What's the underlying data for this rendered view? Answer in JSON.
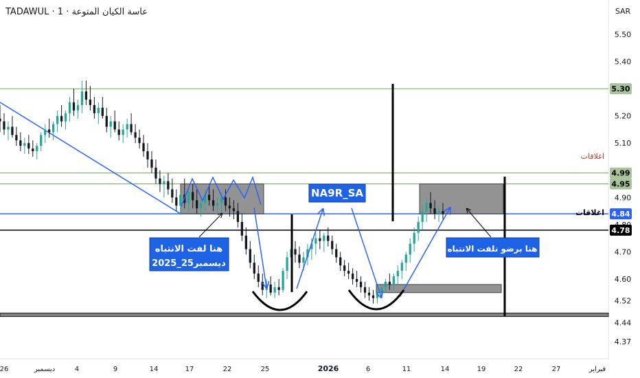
{
  "header": {
    "title": "TADAWUL · 1 · عاسة الكيان المتوعة"
  },
  "chart_data": {
    "type": "candlestick",
    "currency": "SAR",
    "ylim": [
      4.33,
      5.6
    ],
    "y_ticks": [
      "5.50",
      "5.40",
      "5.30",
      "5.20",
      "5.10",
      "4.90",
      "4.80",
      "4.70",
      "4.60",
      "4.52",
      "4.44",
      "4.37"
    ],
    "x_ticks": [
      "26",
      "ديسمبر",
      "4",
      "9",
      "14",
      "17",
      "22",
      "25",
      "2026",
      "6",
      "11",
      "14",
      "19",
      "22",
      "27",
      "فبراير"
    ],
    "price_labels": [
      {
        "value": 5.3,
        "text": "5.30",
        "color": "#a9c49a"
      },
      {
        "value": 4.99,
        "text": "4.99",
        "color": "#a9c49a"
      },
      {
        "value": 4.95,
        "text": "4.95",
        "color": "#a9c49a"
      },
      {
        "value": 4.84,
        "text": "4.84",
        "color": "#2962ff"
      },
      {
        "value": 4.78,
        "text": "4.78",
        "color": "#000000"
      }
    ],
    "line_labels": {
      "closes_upper": "اغلاقات",
      "closes_lower": "اغلاقات"
    },
    "annotations": {
      "symbol": "NA9R_SA",
      "left_box": [
        "هنا لفت الانتباه",
        "ديسمبر25_2025"
      ],
      "right_box": "هنا برضو نلفت الانتباه"
    },
    "colors": {
      "up": "#26a69a",
      "down": "#131722",
      "trend": "#2962ff",
      "resistance": "#6aa84f",
      "zone": "#808080"
    },
    "candles": [
      [
        5.19,
        5.24,
        5.14,
        5.18
      ],
      [
        5.18,
        5.21,
        5.13,
        5.15
      ],
      [
        5.15,
        5.18,
        5.11,
        5.16
      ],
      [
        5.16,
        5.2,
        5.12,
        5.13
      ],
      [
        5.13,
        5.16,
        5.09,
        5.11
      ],
      [
        5.11,
        5.14,
        5.07,
        5.09
      ],
      [
        5.09,
        5.12,
        5.06,
        5.1
      ],
      [
        5.1,
        5.13,
        5.06,
        5.08
      ],
      [
        5.08,
        5.11,
        5.05,
        5.07
      ],
      [
        5.07,
        5.1,
        5.04,
        5.09
      ],
      [
        5.09,
        5.14,
        5.07,
        5.13
      ],
      [
        5.13,
        5.17,
        5.1,
        5.15
      ],
      [
        5.15,
        5.19,
        5.12,
        5.14
      ],
      [
        5.14,
        5.18,
        5.11,
        5.17
      ],
      [
        5.17,
        5.22,
        5.14,
        5.2
      ],
      [
        5.2,
        5.24,
        5.16,
        5.18
      ],
      [
        5.18,
        5.22,
        5.15,
        5.21
      ],
      [
        5.21,
        5.27,
        5.18,
        5.25
      ],
      [
        5.25,
        5.3,
        5.2,
        5.22
      ],
      [
        5.22,
        5.26,
        5.19,
        5.24
      ],
      [
        5.24,
        5.33,
        5.21,
        5.29
      ],
      [
        5.29,
        5.33,
        5.24,
        5.26
      ],
      [
        5.26,
        5.31,
        5.22,
        5.24
      ],
      [
        5.24,
        5.27,
        5.19,
        5.21
      ],
      [
        5.21,
        5.25,
        5.17,
        5.23
      ],
      [
        5.23,
        5.27,
        5.19,
        5.2
      ],
      [
        5.2,
        5.23,
        5.14,
        5.16
      ],
      [
        5.16,
        5.2,
        5.12,
        5.18
      ],
      [
        5.18,
        5.22,
        5.14,
        5.15
      ],
      [
        5.15,
        5.18,
        5.11,
        5.13
      ],
      [
        5.13,
        5.17,
        5.1,
        5.15
      ],
      [
        5.15,
        5.19,
        5.12,
        5.17
      ],
      [
        5.17,
        5.21,
        5.13,
        5.14
      ],
      [
        5.14,
        5.17,
        5.1,
        5.12
      ],
      [
        5.12,
        5.15,
        5.08,
        5.1
      ],
      [
        5.1,
        5.13,
        5.05,
        5.07
      ],
      [
        5.07,
        5.1,
        5.01,
        5.04
      ],
      [
        5.04,
        5.07,
        4.99,
        5.01
      ],
      [
        5.01,
        5.04,
        4.95,
        4.97
      ],
      [
        4.97,
        5.0,
        4.92,
        4.95
      ],
      [
        4.95,
        4.98,
        4.9,
        4.96
      ],
      [
        4.96,
        4.99,
        4.91,
        4.93
      ],
      [
        4.93,
        4.97,
        4.88,
        4.9
      ],
      [
        4.9,
        4.93,
        4.85,
        4.87
      ],
      [
        4.87,
        4.92,
        4.84,
        4.91
      ],
      [
        4.91,
        4.97,
        4.86,
        4.88
      ],
      [
        4.88,
        4.94,
        4.85,
        4.92
      ],
      [
        4.92,
        4.95,
        4.86,
        4.89
      ],
      [
        4.89,
        4.93,
        4.84,
        4.86
      ],
      [
        4.86,
        4.9,
        4.83,
        4.88
      ],
      [
        4.88,
        4.93,
        4.85,
        4.91
      ],
      [
        4.91,
        4.95,
        4.87,
        4.89
      ],
      [
        4.89,
        4.93,
        4.85,
        4.87
      ],
      [
        4.87,
        4.9,
        4.84,
        4.88
      ],
      [
        4.88,
        4.92,
        4.84,
        4.9
      ],
      [
        4.9,
        4.93,
        4.85,
        4.87
      ],
      [
        4.87,
        4.9,
        4.83,
        4.86
      ],
      [
        4.86,
        4.89,
        4.82,
        4.85
      ],
      [
        4.85,
        4.88,
        4.79,
        4.81
      ],
      [
        4.81,
        4.84,
        4.74,
        4.76
      ],
      [
        4.76,
        4.79,
        4.69,
        4.71
      ],
      [
        4.71,
        4.74,
        4.64,
        4.66
      ],
      [
        4.66,
        4.69,
        4.6,
        4.62
      ],
      [
        4.62,
        4.65,
        4.57,
        4.59
      ],
      [
        4.59,
        4.62,
        4.54,
        4.56
      ],
      [
        4.56,
        4.6,
        4.53,
        4.58
      ],
      [
        4.58,
        4.61,
        4.54,
        4.55
      ],
      [
        4.55,
        4.59,
        4.53,
        4.57
      ],
      [
        4.57,
        4.6,
        4.54,
        4.56
      ],
      [
        4.56,
        4.64,
        4.55,
        4.63
      ],
      [
        4.63,
        4.7,
        4.6,
        4.68
      ],
      [
        4.68,
        4.73,
        4.64,
        4.71
      ],
      [
        4.71,
        4.74,
        4.66,
        4.69
      ],
      [
        4.69,
        4.72,
        4.64,
        4.66
      ],
      [
        4.66,
        4.7,
        4.63,
        4.68
      ],
      [
        4.68,
        4.73,
        4.65,
        4.71
      ],
      [
        4.71,
        4.75,
        4.67,
        4.73
      ],
      [
        4.73,
        4.77,
        4.69,
        4.75
      ],
      [
        4.75,
        4.78,
        4.71,
        4.74
      ],
      [
        4.74,
        4.77,
        4.7,
        4.76
      ],
      [
        4.76,
        4.79,
        4.72,
        4.74
      ],
      [
        4.74,
        4.76,
        4.69,
        4.71
      ],
      [
        4.71,
        4.73,
        4.66,
        4.68
      ],
      [
        4.68,
        4.7,
        4.63,
        4.65
      ],
      [
        4.65,
        4.67,
        4.61,
        4.63
      ],
      [
        4.63,
        4.66,
        4.6,
        4.62
      ],
      [
        4.62,
        4.64,
        4.58,
        4.6
      ],
      [
        4.6,
        4.63,
        4.57,
        4.59
      ],
      [
        4.59,
        4.61,
        4.55,
        4.57
      ],
      [
        4.57,
        4.59,
        4.53,
        4.55
      ],
      [
        4.55,
        4.57,
        4.52,
        4.54
      ],
      [
        4.54,
        4.56,
        4.51,
        4.53
      ],
      [
        4.53,
        4.56,
        4.51,
        4.55
      ],
      [
        4.55,
        4.58,
        4.53,
        4.57
      ],
      [
        4.57,
        4.6,
        4.55,
        4.59
      ],
      [
        4.59,
        4.62,
        4.56,
        4.58
      ],
      [
        4.58,
        4.62,
        4.56,
        4.61
      ],
      [
        4.61,
        4.65,
        4.58,
        4.63
      ],
      [
        4.63,
        4.67,
        4.6,
        4.66
      ],
      [
        4.66,
        4.7,
        4.63,
        4.69
      ],
      [
        4.69,
        4.75,
        4.66,
        4.73
      ],
      [
        4.73,
        4.79,
        4.7,
        4.77
      ],
      [
        4.77,
        4.83,
        4.74,
        4.81
      ],
      [
        4.81,
        4.87,
        4.78,
        4.85
      ],
      [
        4.85,
        4.9,
        4.81,
        4.88
      ],
      [
        4.88,
        4.92,
        4.84,
        4.86
      ],
      [
        4.86,
        4.89,
        4.82,
        4.84
      ],
      [
        4.84,
        4.87,
        4.81,
        4.85
      ],
      [
        4.85,
        4.88,
        4.82,
        4.84
      ]
    ]
  }
}
